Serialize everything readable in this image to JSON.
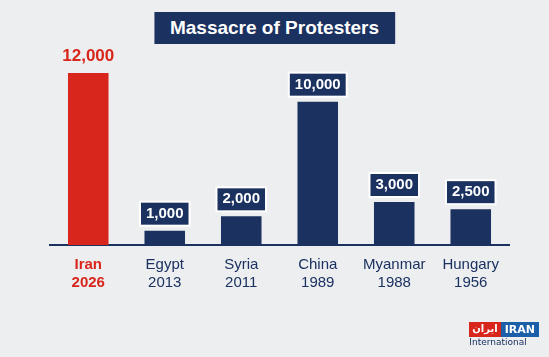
{
  "chart_data": {
    "type": "bar",
    "title": "Massacre of Protesters",
    "categories": [
      "Iran 2026",
      "Egypt 2013",
      "Syria 2011",
      "China 1989",
      "Myanmar 1988",
      "Hungary 1956"
    ],
    "values": [
      12000,
      1000,
      2000,
      10000,
      3000,
      2500
    ],
    "value_labels": [
      "12,000",
      "1,000",
      "2,000",
      "10,000",
      "3,000",
      "2,500"
    ],
    "colors": [
      "#d9261c",
      "#1b3160",
      "#1b3160",
      "#1b3160",
      "#1b3160",
      "#1b3160"
    ],
    "ylim": [
      0,
      12000
    ],
    "grid": false,
    "data_labels": true,
    "tick_labels": "x",
    "annotations": [
      "ايران",
      "IRAN",
      "International"
    ]
  }
}
